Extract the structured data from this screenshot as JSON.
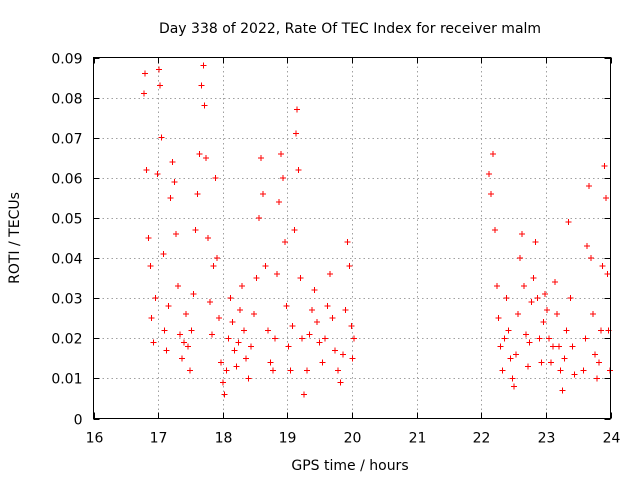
{
  "chart_data": {
    "type": "scatter",
    "title": "Day 338 of 2022, Rate Of TEC Index for receiver malm",
    "xlabel": "GPS time / hours",
    "ylabel": "ROTI / TECUs",
    "xlim": [
      16,
      24
    ],
    "ylim": [
      0,
      0.09
    ],
    "x_ticks": [
      16,
      17,
      18,
      19,
      20,
      21,
      22,
      23,
      24
    ],
    "x_tick_labels": [
      "16",
      "17",
      "18",
      "19",
      "20",
      "21",
      "22",
      "23",
      "24"
    ],
    "y_ticks": [
      0,
      0.01,
      0.02,
      0.03,
      0.04,
      0.05,
      0.06,
      0.07,
      0.08,
      0.09
    ],
    "y_tick_labels": [
      "0",
      "0.01",
      "0.02",
      "0.03",
      "0.04",
      "0.05",
      "0.06",
      "0.07",
      "0.08",
      "0.09"
    ],
    "grid": true,
    "marker": "+",
    "color": "#ff0000",
    "series": [
      {
        "name": "ROTI",
        "points": [
          [
            16.78,
            0.081
          ],
          [
            16.8,
            0.086
          ],
          [
            16.82,
            0.062
          ],
          [
            16.85,
            0.045
          ],
          [
            16.88,
            0.038
          ],
          [
            16.9,
            0.025
          ],
          [
            16.93,
            0.019
          ],
          [
            16.96,
            0.03
          ],
          [
            16.99,
            0.061
          ],
          [
            17.01,
            0.087
          ],
          [
            17.03,
            0.083
          ],
          [
            17.05,
            0.07
          ],
          [
            17.08,
            0.041
          ],
          [
            17.1,
            0.022
          ],
          [
            17.13,
            0.017
          ],
          [
            17.16,
            0.028
          ],
          [
            17.19,
            0.055
          ],
          [
            17.22,
            0.064
          ],
          [
            17.25,
            0.059
          ],
          [
            17.28,
            0.046
          ],
          [
            17.31,
            0.033
          ],
          [
            17.34,
            0.021
          ],
          [
            17.37,
            0.015
          ],
          [
            17.4,
            0.019
          ],
          [
            17.43,
            0.026
          ],
          [
            17.46,
            0.018
          ],
          [
            17.49,
            0.012
          ],
          [
            17.52,
            0.022
          ],
          [
            17.55,
            0.031
          ],
          [
            17.58,
            0.047
          ],
          [
            17.61,
            0.056
          ],
          [
            17.64,
            0.066
          ],
          [
            17.67,
            0.083
          ],
          [
            17.7,
            0.088
          ],
          [
            17.72,
            0.078
          ],
          [
            17.74,
            0.065
          ],
          [
            17.77,
            0.045
          ],
          [
            17.8,
            0.029
          ],
          [
            17.83,
            0.021
          ],
          [
            17.86,
            0.038
          ],
          [
            17.89,
            0.06
          ],
          [
            17.91,
            0.04
          ],
          [
            17.94,
            0.025
          ],
          [
            17.97,
            0.014
          ],
          [
            18.0,
            0.009
          ],
          [
            18.03,
            0.006
          ],
          [
            18.06,
            0.012
          ],
          [
            18.09,
            0.02
          ],
          [
            18.12,
            0.03
          ],
          [
            18.15,
            0.024
          ],
          [
            18.18,
            0.017
          ],
          [
            18.21,
            0.013
          ],
          [
            18.24,
            0.019
          ],
          [
            18.27,
            0.027
          ],
          [
            18.3,
            0.033
          ],
          [
            18.33,
            0.022
          ],
          [
            18.36,
            0.015
          ],
          [
            18.4,
            0.01
          ],
          [
            18.44,
            0.018
          ],
          [
            18.48,
            0.026
          ],
          [
            18.52,
            0.035
          ],
          [
            18.56,
            0.05
          ],
          [
            18.59,
            0.065
          ],
          [
            18.62,
            0.056
          ],
          [
            18.66,
            0.038
          ],
          [
            18.7,
            0.022
          ],
          [
            18.74,
            0.014
          ],
          [
            18.78,
            0.012
          ],
          [
            18.81,
            0.02
          ],
          [
            18.84,
            0.036
          ],
          [
            18.87,
            0.054
          ],
          [
            18.9,
            0.066
          ],
          [
            18.93,
            0.06
          ],
          [
            18.96,
            0.044
          ],
          [
            18.99,
            0.028
          ],
          [
            19.02,
            0.018
          ],
          [
            19.05,
            0.012
          ],
          [
            19.08,
            0.023
          ],
          [
            19.11,
            0.047
          ],
          [
            19.13,
            0.071
          ],
          [
            19.15,
            0.077
          ],
          [
            19.17,
            0.062
          ],
          [
            19.2,
            0.035
          ],
          [
            19.23,
            0.02
          ],
          [
            19.26,
            0.006
          ],
          [
            19.3,
            0.012
          ],
          [
            19.34,
            0.021
          ],
          [
            19.38,
            0.027
          ],
          [
            19.42,
            0.032
          ],
          [
            19.46,
            0.024
          ],
          [
            19.5,
            0.019
          ],
          [
            19.54,
            0.014
          ],
          [
            19.58,
            0.02
          ],
          [
            19.62,
            0.028
          ],
          [
            19.66,
            0.036
          ],
          [
            19.7,
            0.025
          ],
          [
            19.74,
            0.017
          ],
          [
            19.78,
            0.012
          ],
          [
            19.82,
            0.009
          ],
          [
            19.86,
            0.016
          ],
          [
            19.9,
            0.027
          ],
          [
            19.93,
            0.044
          ],
          [
            19.96,
            0.038
          ],
          [
            19.99,
            0.023
          ],
          [
            20.01,
            0.015
          ],
          [
            20.03,
            0.02
          ],
          [
            22.12,
            0.061
          ],
          [
            22.15,
            0.056
          ],
          [
            22.18,
            0.066
          ],
          [
            22.21,
            0.047
          ],
          [
            22.24,
            0.033
          ],
          [
            22.27,
            0.025
          ],
          [
            22.3,
            0.018
          ],
          [
            22.33,
            0.012
          ],
          [
            22.36,
            0.02
          ],
          [
            22.39,
            0.03
          ],
          [
            22.42,
            0.022
          ],
          [
            22.45,
            0.015
          ],
          [
            22.48,
            0.01
          ],
          [
            22.51,
            0.008
          ],
          [
            22.54,
            0.016
          ],
          [
            22.57,
            0.026
          ],
          [
            22.6,
            0.04
          ],
          [
            22.63,
            0.046
          ],
          [
            22.66,
            0.033
          ],
          [
            22.69,
            0.021
          ],
          [
            22.72,
            0.013
          ],
          [
            22.75,
            0.019
          ],
          [
            22.78,
            0.029
          ],
          [
            22.81,
            0.035
          ],
          [
            22.84,
            0.044
          ],
          [
            22.87,
            0.03
          ],
          [
            22.9,
            0.02
          ],
          [
            22.93,
            0.014
          ],
          [
            22.96,
            0.024
          ],
          [
            22.99,
            0.031
          ],
          [
            23.02,
            0.027
          ],
          [
            23.05,
            0.02
          ],
          [
            23.08,
            0.014
          ],
          [
            23.11,
            0.018
          ],
          [
            23.14,
            0.034
          ],
          [
            23.17,
            0.026
          ],
          [
            23.2,
            0.018
          ],
          [
            23.23,
            0.012
          ],
          [
            23.26,
            0.007
          ],
          [
            23.29,
            0.015
          ],
          [
            23.32,
            0.022
          ],
          [
            23.35,
            0.049
          ],
          [
            23.38,
            0.03
          ],
          [
            23.41,
            0.018
          ],
          [
            23.44,
            0.011
          ],
          [
            23.58,
            0.012
          ],
          [
            23.61,
            0.02
          ],
          [
            23.64,
            0.043
          ],
          [
            23.67,
            0.058
          ],
          [
            23.7,
            0.04
          ],
          [
            23.73,
            0.026
          ],
          [
            23.76,
            0.016
          ],
          [
            23.79,
            0.01
          ],
          [
            23.82,
            0.014
          ],
          [
            23.85,
            0.022
          ],
          [
            23.88,
            0.038
          ],
          [
            23.91,
            0.063
          ],
          [
            23.93,
            0.055
          ],
          [
            23.95,
            0.036
          ],
          [
            23.97,
            0.022
          ],
          [
            23.99,
            0.012
          ]
        ]
      }
    ]
  }
}
